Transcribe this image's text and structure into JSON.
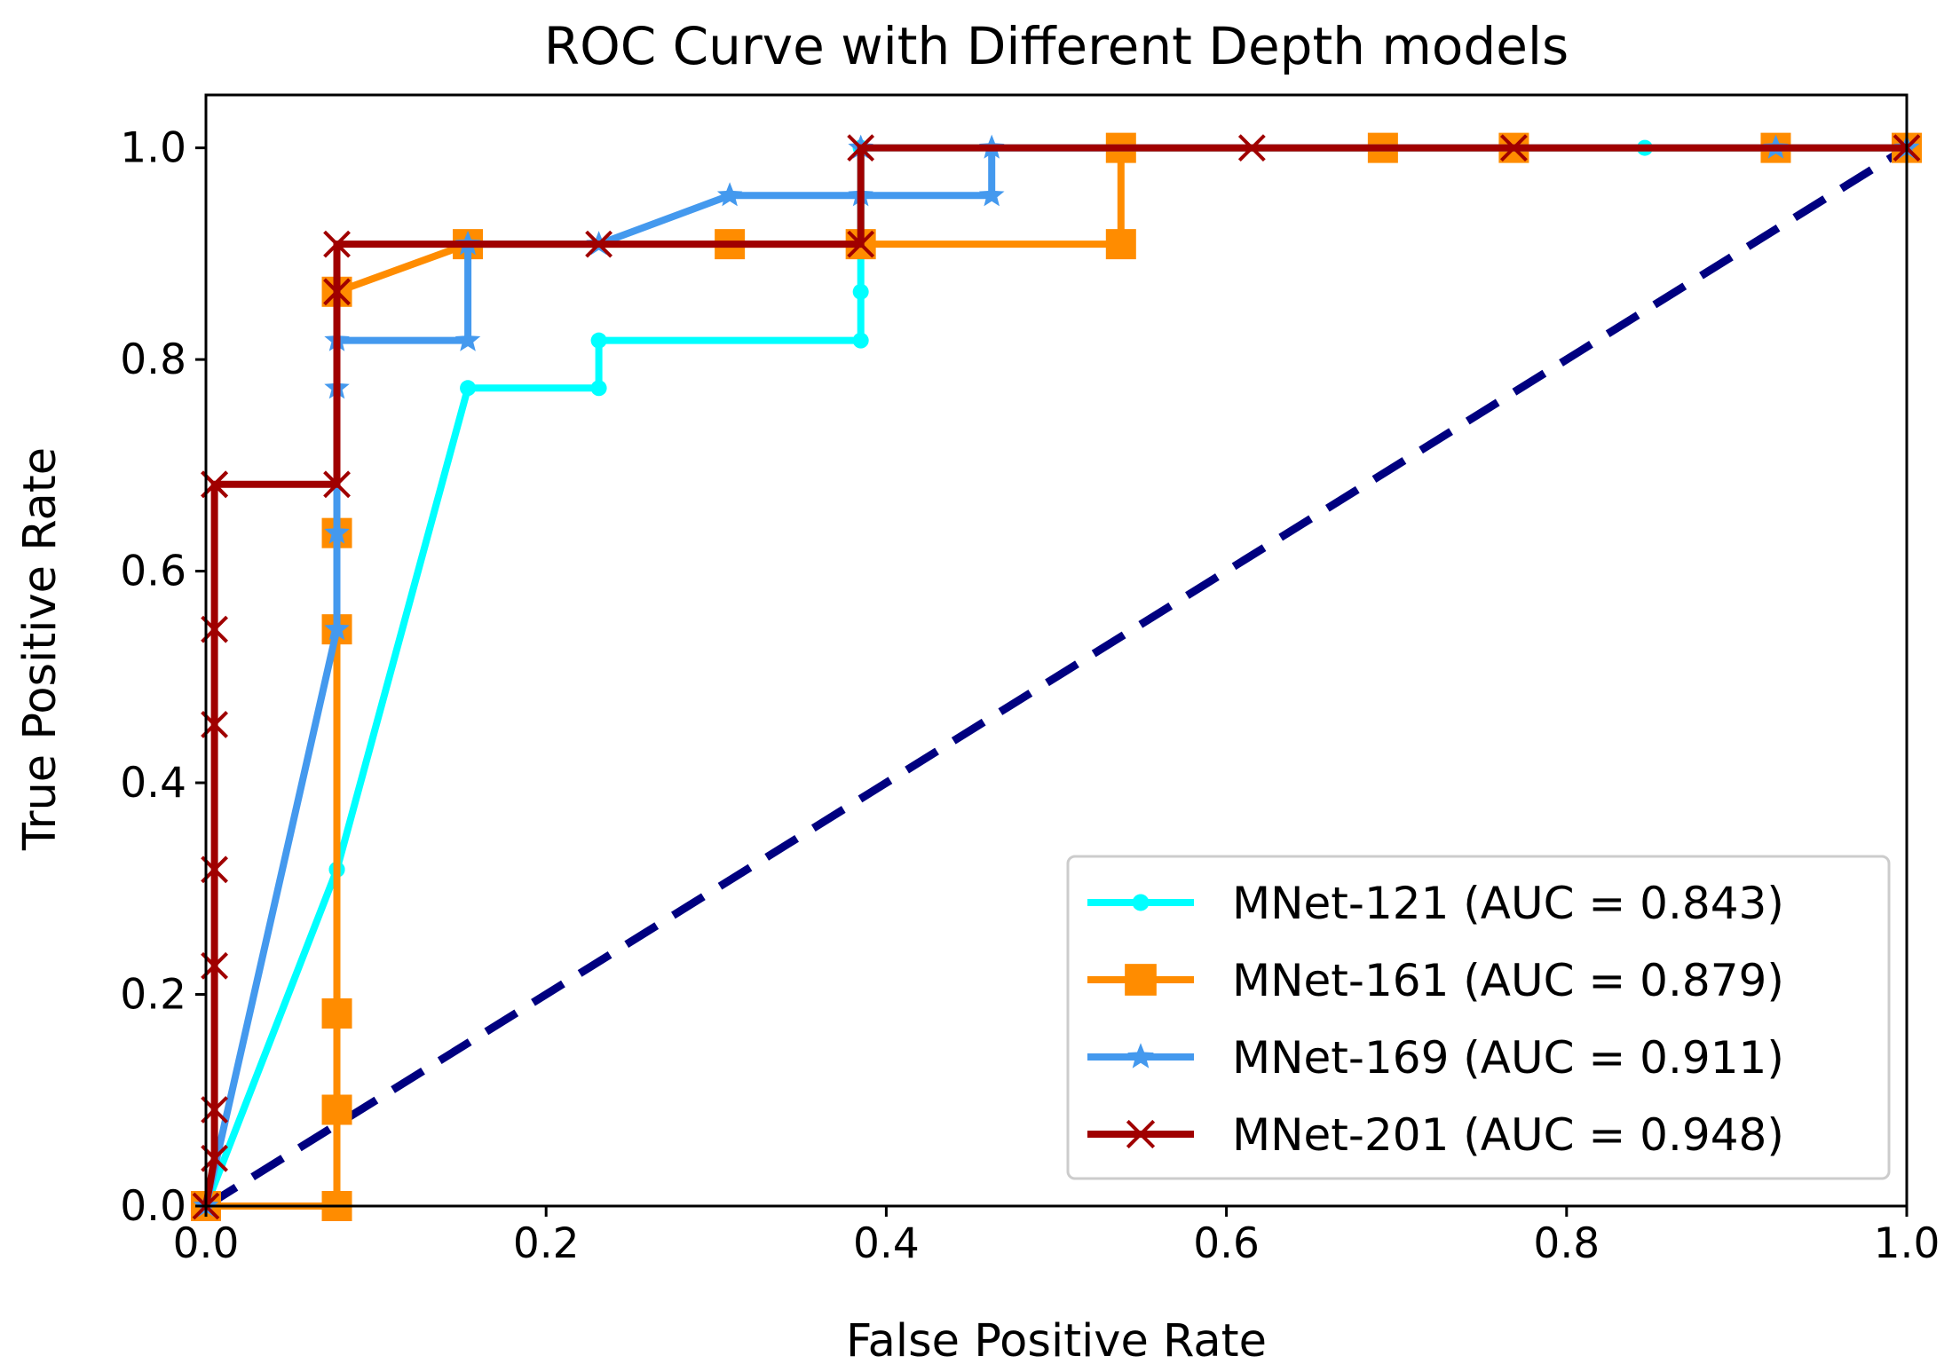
{
  "chart_data": {
    "type": "line",
    "title": "ROC Curve with Different Depth models",
    "xlabel": "False Positive Rate",
    "ylabel": "True Positive Rate",
    "xlim": [
      0.0,
      1.0
    ],
    "ylim": [
      0.0,
      1.05
    ],
    "xticks": [
      0.0,
      0.2,
      0.4,
      0.6,
      0.8,
      1.0
    ],
    "yticks": [
      0.0,
      0.2,
      0.4,
      0.6,
      0.8,
      1.0
    ],
    "xtick_labels": [
      "0.0",
      "0.2",
      "0.4",
      "0.6",
      "0.8",
      "1.0"
    ],
    "ytick_labels": [
      "0.0",
      "0.2",
      "0.4",
      "0.6",
      "0.8",
      "1.0"
    ],
    "grid": false,
    "legend_position": "lower-right",
    "diagonal": {
      "x": [
        0,
        1
      ],
      "y": [
        0,
        1
      ],
      "color": "#000080",
      "style": "dashed"
    },
    "series": [
      {
        "name": "MNet-121 (AUC = 0.843)",
        "color": "#00ffff",
        "marker": "circle",
        "x": [
          0,
          0.077,
          0.077,
          0.154,
          0.231,
          0.231,
          0.385,
          0.385,
          0.385,
          0.385,
          0.846,
          1.0
        ],
        "y": [
          0,
          0.318,
          0.318,
          0.773,
          0.773,
          0.818,
          0.818,
          0.864,
          1.0,
          1.0,
          1.0,
          1.0
        ]
      },
      {
        "name": "MNet-161 (AUC = 0.879)",
        "color": "#ff8c00",
        "marker": "square",
        "x": [
          0,
          0.077,
          0.077,
          0.077,
          0.077,
          0.077,
          0.077,
          0.154,
          0.308,
          0.385,
          0.538,
          0.538,
          0.692,
          0.769,
          0.923,
          1.0
        ],
        "y": [
          0,
          0.0,
          0.091,
          0.182,
          0.545,
          0.636,
          0.864,
          0.909,
          0.909,
          0.909,
          0.909,
          1.0,
          1.0,
          1.0,
          1.0,
          1.0
        ]
      },
      {
        "name": "MNet-169 (AUC = 0.911)",
        "color": "#4499ee",
        "marker": "star",
        "x": [
          0,
          0.077,
          0.077,
          0.077,
          0.077,
          0.154,
          0.154,
          0.231,
          0.308,
          0.385,
          0.462,
          0.462,
          0.923,
          1.0
        ],
        "y": [
          0,
          0.545,
          0.636,
          0.773,
          0.818,
          0.818,
          0.909,
          0.909,
          0.955,
          0.955,
          0.955,
          1.0,
          1.0,
          1.0
        ],
        "extra_markers": [
          [
            0.385,
            1.0
          ],
          [
            0.154,
            0.909
          ]
        ]
      },
      {
        "name": "MNet-201 (AUC = 0.948)",
        "color": "#a00000",
        "marker": "x",
        "x": [
          0,
          0.005,
          0.005,
          0.005,
          0.005,
          0.005,
          0.005,
          0.005,
          0.005,
          0.077,
          0.077,
          0.077,
          0.231,
          0.385,
          0.385,
          0.615,
          0.769,
          1.0
        ],
        "y": [
          0,
          0.045,
          0.091,
          0.227,
          0.318,
          0.455,
          0.545,
          0.682,
          0.682,
          0.682,
          0.864,
          0.909,
          0.909,
          0.909,
          1.0,
          1.0,
          1.0,
          1.0
        ]
      }
    ]
  }
}
